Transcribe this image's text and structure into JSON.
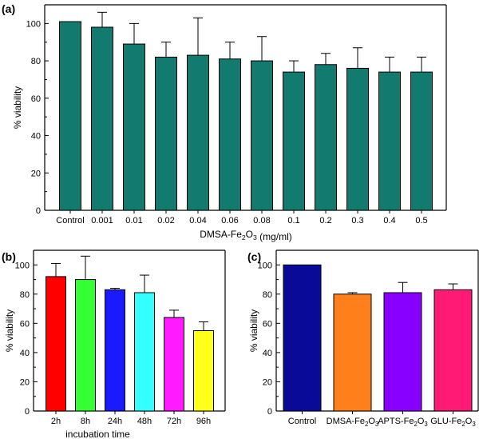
{
  "chart_data": [
    {
      "panel": "(a)",
      "type": "bar",
      "title": "",
      "xlabel": "DMSA-Fe2O3 (mg/ml)",
      "ylabel": "% viability",
      "ylim": [
        0,
        110
      ],
      "yticks": [
        0,
        20,
        40,
        60,
        80,
        100
      ],
      "categories": [
        "Control",
        "0.001",
        "0.01",
        "0.02",
        "0.04",
        "0.06",
        "0.08",
        "0.1",
        "0.2",
        "0.3",
        "0.4",
        "0.5"
      ],
      "values": [
        101,
        98,
        89,
        82,
        83,
        81,
        80,
        74,
        78,
        76,
        74,
        74
      ],
      "errors": [
        0,
        8,
        11,
        8,
        20,
        9,
        13,
        6,
        6,
        11,
        8,
        8
      ],
      "colors": [
        "#137a70"
      ]
    },
    {
      "panel": "(b)",
      "type": "bar",
      "title": "",
      "xlabel": "incubation time",
      "ylabel": "% viability",
      "ylim": [
        0,
        110
      ],
      "yticks": [
        0,
        20,
        40,
        60,
        80,
        100
      ],
      "categories": [
        "2h",
        "8h",
        "24h",
        "48h",
        "72h",
        "96h"
      ],
      "values": [
        92,
        90,
        83,
        81,
        64,
        55
      ],
      "errors": [
        9,
        16,
        1,
        12,
        5,
        6
      ],
      "colors": [
        "#ff0000",
        "#33ff33",
        "#1a1aff",
        "#33ffff",
        "#ff1aff",
        "#ffff1a"
      ]
    },
    {
      "panel": "(c)",
      "type": "bar",
      "title": "",
      "xlabel": "",
      "ylabel": "% viability",
      "ylim": [
        0,
        110
      ],
      "yticks": [
        0,
        20,
        40,
        60,
        80,
        100
      ],
      "categories": [
        "Control",
        "DMSA-Fe2O3",
        "APTS-Fe2O3",
        "GLU-Fe2O3"
      ],
      "values": [
        100,
        80,
        81,
        83
      ],
      "errors": [
        0,
        1,
        7,
        4
      ],
      "colors": [
        "#0a0a99",
        "#ff7f1a",
        "#8800ff",
        "#ff1a75"
      ]
    }
  ]
}
